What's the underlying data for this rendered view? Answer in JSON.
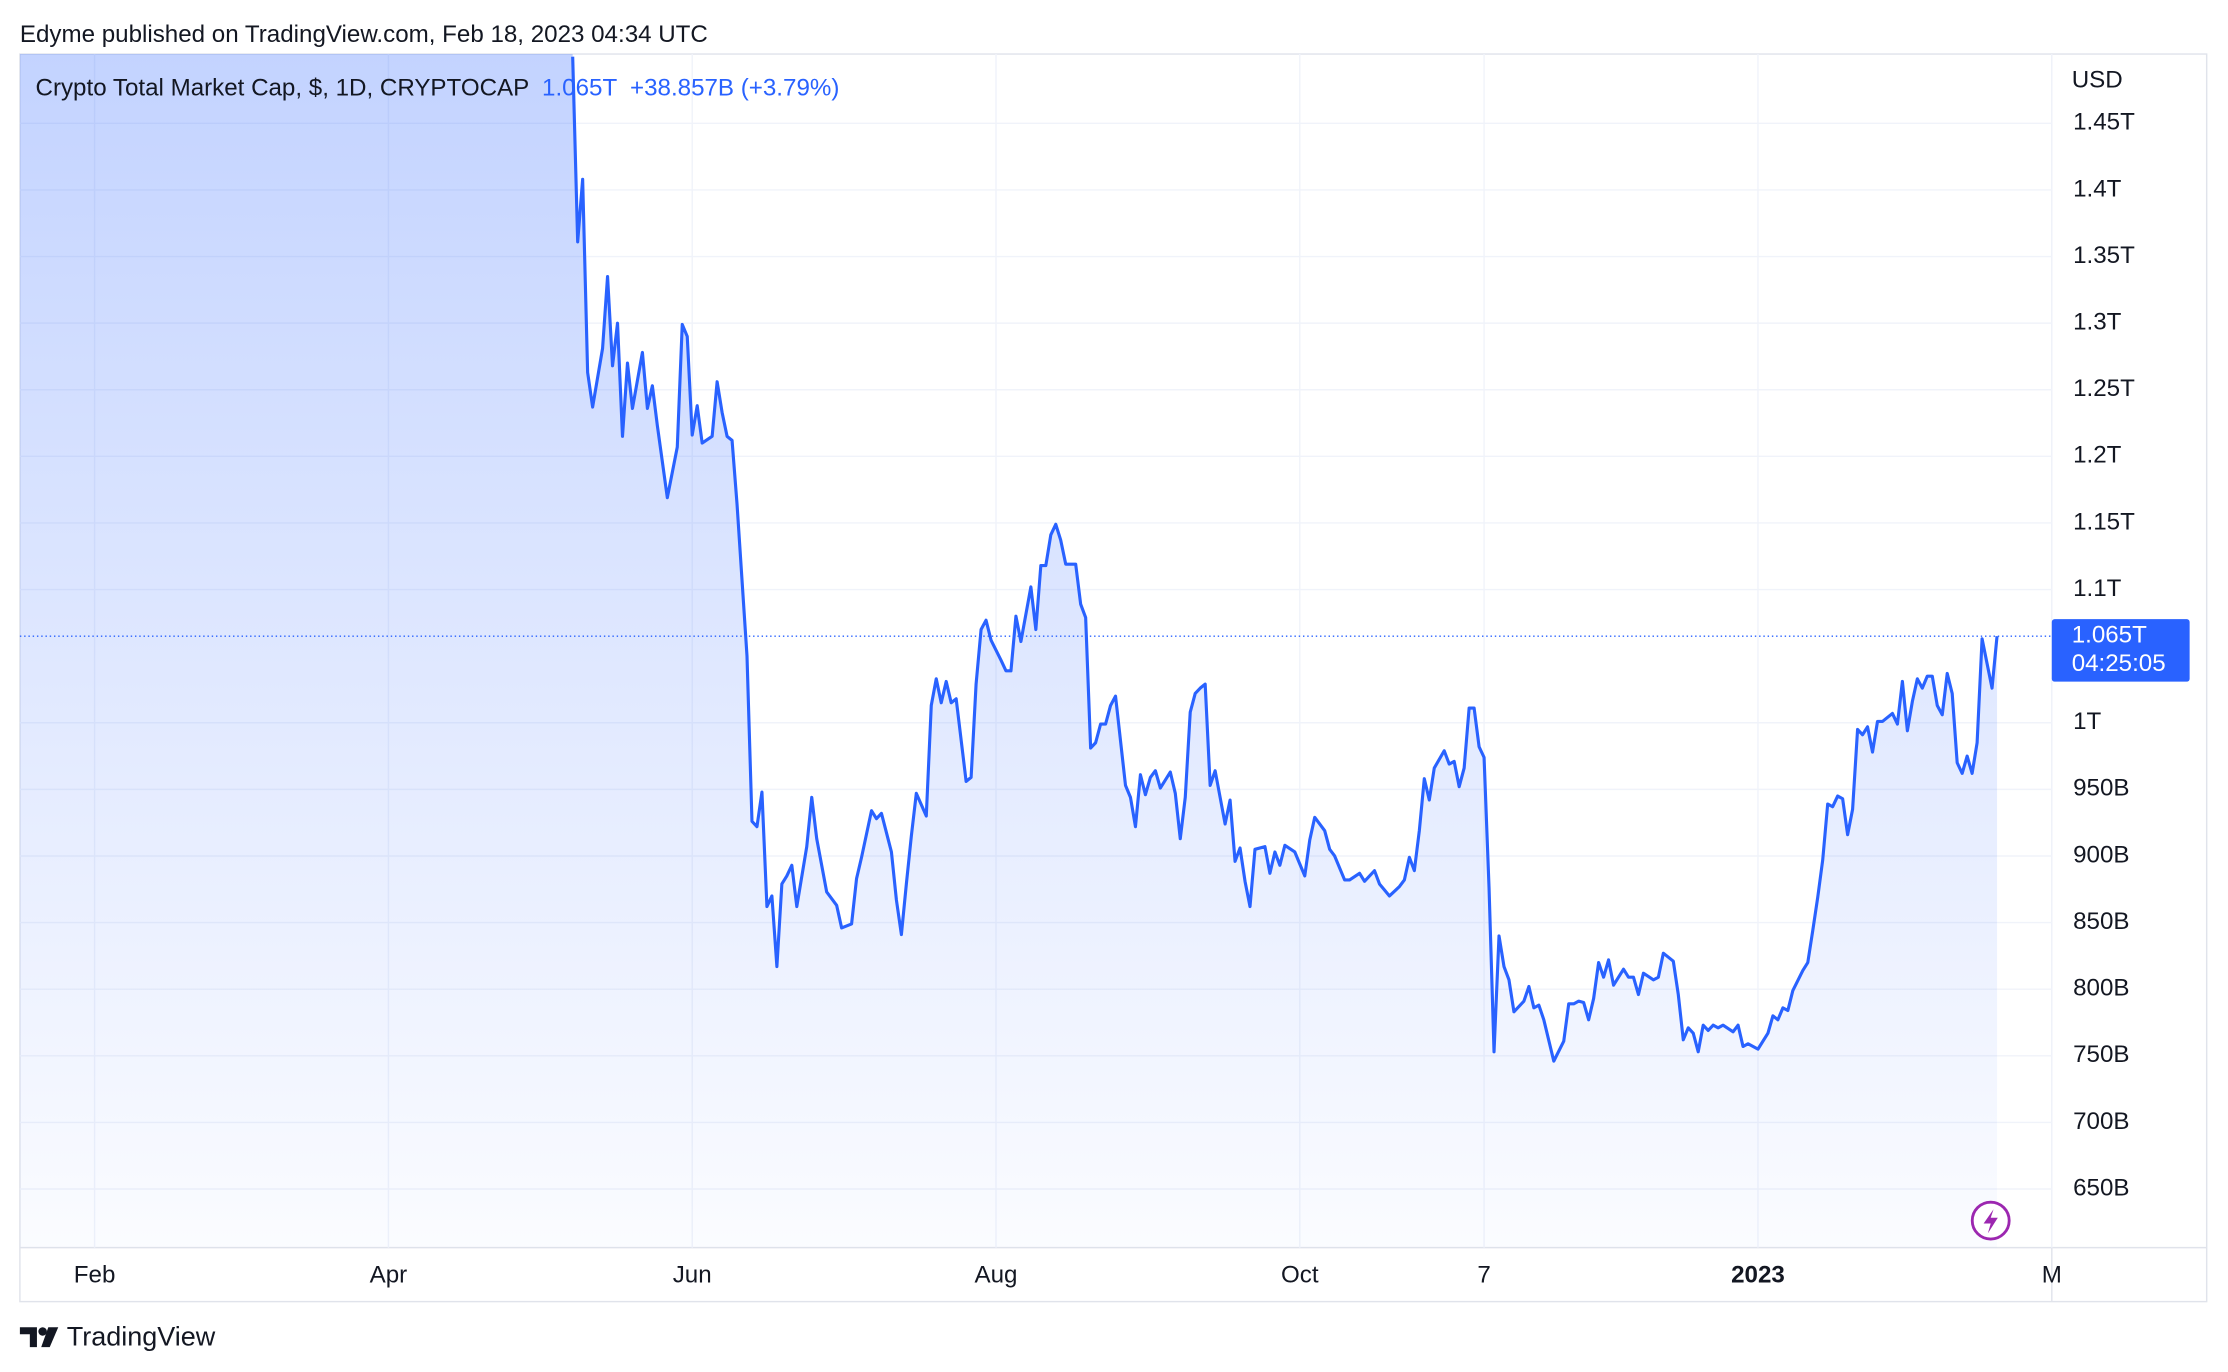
{
  "header": {
    "attribution": "Edyme published on TradingView.com, Feb 18, 2023 04:34 UTC"
  },
  "footer": {
    "brand": "TradingView"
  },
  "chart_data": {
    "type": "line",
    "title": "Crypto Total Market Cap, $, 1D, CRYPTOCAP",
    "last_price": {
      "value": 1065,
      "label": "1.065T"
    },
    "change": "+38.857B (+3.79%)",
    "countdown": "04:25:05",
    "y_axis_label": "USD",
    "color": "#2962ff",
    "grid": true,
    "xlim": [
      -15,
      393
    ],
    "xticks": [
      {
        "value": 0,
        "label": "Feb"
      },
      {
        "value": 59,
        "label": "Apr"
      },
      {
        "value": 120,
        "label": "Jun"
      },
      {
        "value": 181,
        "label": "Aug"
      },
      {
        "value": 242,
        "label": "Oct"
      },
      {
        "value": 279,
        "label": "7"
      },
      {
        "value": 334,
        "label": "2023",
        "bold": true
      },
      {
        "value": 393,
        "label": "M"
      }
    ],
    "ylim": [
      606,
      1502
    ],
    "yticks": [
      {
        "value": 650,
        "label": "650B"
      },
      {
        "value": 700,
        "label": "700B"
      },
      {
        "value": 750,
        "label": "750B"
      },
      {
        "value": 800,
        "label": "800B"
      },
      {
        "value": 850,
        "label": "850B"
      },
      {
        "value": 900,
        "label": "900B"
      },
      {
        "value": 950,
        "label": "950B"
      },
      {
        "value": 1000,
        "label": "1T"
      },
      {
        "value": 1100,
        "label": "1.1T"
      },
      {
        "value": 1150,
        "label": "1.15T"
      },
      {
        "value": 1200,
        "label": "1.2T"
      },
      {
        "value": 1250,
        "label": "1.25T"
      },
      {
        "value": 1300,
        "label": "1.3T"
      },
      {
        "value": 1350,
        "label": "1.35T"
      },
      {
        "value": 1400,
        "label": "1.4T"
      },
      {
        "value": 1450,
        "label": "1.45T"
      }
    ],
    "x": [
      96,
      97,
      98,
      99,
      100,
      102,
      103,
      104,
      105,
      106,
      107,
      108,
      110,
      111,
      112,
      113,
      115,
      117,
      118,
      119,
      120,
      121,
      122,
      124,
      125,
      126,
      127,
      128,
      129,
      131,
      132,
      133,
      134,
      135,
      136,
      137,
      138,
      139,
      140,
      141,
      143,
      144,
      145,
      147,
      149,
      150,
      152,
      153,
      154,
      156,
      157,
      158,
      160,
      161,
      162,
      163,
      164,
      165,
      167,
      168,
      169,
      170,
      171,
      172,
      173,
      175,
      176,
      177,
      178,
      179,
      180,
      182,
      183,
      184,
      185,
      186,
      188,
      189,
      190,
      191,
      192,
      193,
      194,
      195,
      197,
      198,
      199,
      200,
      201,
      202,
      203,
      204,
      205,
      207,
      208,
      209,
      210,
      211,
      212,
      213,
      214,
      216,
      217,
      218,
      219,
      220,
      221,
      222,
      223,
      224,
      225,
      227,
      228,
      229,
      230,
      231,
      232,
      233,
      235,
      236,
      237,
      238,
      239,
      241,
      242,
      243,
      244,
      245,
      247,
      248,
      249,
      251,
      252,
      254,
      255,
      257,
      258,
      260,
      262,
      263,
      264,
      265,
      266,
      267,
      268,
      269,
      271,
      272,
      273,
      274,
      275,
      276,
      277,
      278,
      279,
      280,
      281,
      282,
      283,
      284,
      285,
      287,
      288,
      289,
      290,
      291,
      293,
      295,
      296,
      297,
      298,
      299,
      300,
      301,
      302,
      303,
      304,
      305,
      307,
      308,
      309,
      310,
      311,
      313,
      314,
      315,
      317,
      318,
      319,
      320,
      321,
      322,
      323,
      324,
      325,
      326,
      327,
      329,
      330,
      331,
      332,
      334,
      336,
      337,
      338,
      339,
      340,
      341,
      343,
      344,
      345,
      346,
      347,
      348,
      349,
      350,
      351,
      352,
      353,
      354,
      355,
      356,
      357,
      358,
      359,
      361,
      362,
      363,
      364,
      365,
      366,
      367,
      368,
      369,
      370,
      371,
      372,
      373,
      374,
      375,
      376,
      377,
      378,
      379,
      381,
      382
    ],
    "values": [
      1500,
      1361,
      1408,
      1263,
      1237,
      1281,
      1335,
      1268,
      1300,
      1215,
      1270,
      1236,
      1278,
      1236,
      1253,
      1223,
      1169,
      1207,
      1299,
      1290,
      1216,
      1238,
      1210,
      1215,
      1256,
      1233,
      1215,
      1212,
      1164,
      1050,
      926,
      922,
      948,
      862,
      870,
      817,
      879,
      885,
      893,
      862,
      907,
      944,
      913,
      873,
      863,
      846,
      849,
      883,
      899,
      934,
      928,
      932,
      903,
      867,
      841,
      879,
      915,
      947,
      930,
      1013,
      1033,
      1015,
      1031,
      1015,
      1018,
      956,
      959,
      1029,
      1070,
      1077,
      1062,
      1047,
      1039,
      1039,
      1080,
      1061,
      1102,
      1070,
      1118,
      1118,
      1141,
      1149,
      1137,
      1119,
      1119,
      1089,
      1079,
      981,
      985,
      999,
      999,
      1013,
      1020,
      953,
      944,
      922,
      961,
      946,
      959,
      964,
      951,
      963,
      947,
      913,
      944,
      1008,
      1022,
      1026,
      1029,
      953,
      964,
      924,
      942,
      896,
      906,
      881,
      862,
      905,
      907,
      887,
      903,
      893,
      908,
      903,
      894,
      885,
      912,
      929,
      919,
      905,
      900,
      882,
      882,
      887,
      881,
      889,
      879,
      870,
      877,
      882,
      899,
      889,
      919,
      958,
      942,
      966,
      979,
      969,
      971,
      952,
      966,
      1011,
      1011,
      982,
      974,
      876,
      753,
      840,
      817,
      807,
      783,
      791,
      802,
      786,
      788,
      777,
      746,
      761,
      789,
      789,
      791,
      790,
      777,
      793,
      820,
      809,
      822,
      803,
      815,
      809,
      809,
      796,
      812,
      807,
      809,
      827,
      821,
      796,
      762,
      771,
      767,
      753,
      773,
      769,
      773,
      771,
      773,
      768,
      773,
      757,
      759,
      755,
      767,
      780,
      777,
      786,
      784,
      799,
      814,
      820,
      844,
      869,
      897,
      939,
      937,
      945,
      943,
      916,
      935,
      995,
      991,
      997,
      978,
      1001,
      1001,
      1007,
      999,
      1031,
      994,
      1016,
      1033,
      1026,
      1035,
      1035,
      1013,
      1006,
      1037,
      1022,
      970,
      962,
      975,
      962,
      985,
      1063,
      1026,
      1065
    ]
  }
}
